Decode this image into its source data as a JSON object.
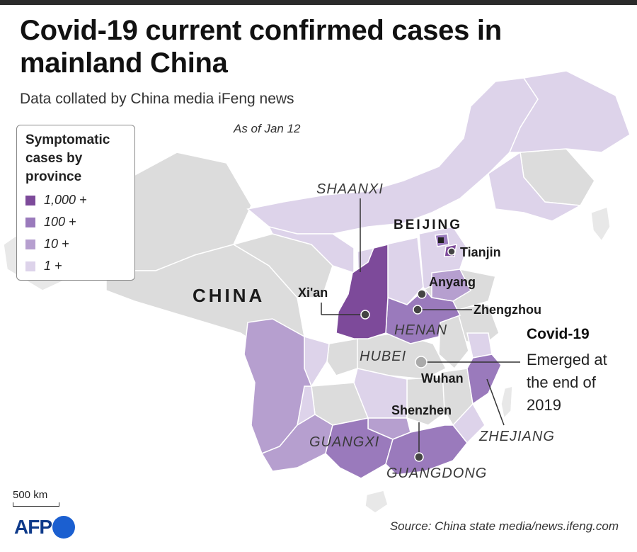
{
  "title": "Covid-19 current confirmed cases in mainland China",
  "subtitle": "Data collated by China media iFeng news",
  "as_of": "As of Jan 12",
  "legend": {
    "title": "Symptomatic cases by province",
    "items": [
      {
        "label": "1,000 +",
        "color": "#7d4a9a"
      },
      {
        "label": "100 +",
        "color": "#9a7abc"
      },
      {
        "label": "10 +",
        "color": "#b69fcf"
      },
      {
        "label": "1 +",
        "color": "#ddd3ea"
      }
    ]
  },
  "colors": {
    "no_cases": "#dcdcdc",
    "neighbour": "#e8e8e8",
    "border": "#ffffff",
    "marker": "#444444",
    "wuhan_marker": "#aaaaaa"
  },
  "labels": {
    "country": "CHINA",
    "beijing": "BEIJING",
    "tianjin": "Tianjin",
    "xian": "Xi'an",
    "anyang": "Anyang",
    "zhengzhou": "Zhengzhou",
    "wuhan": "Wuhan",
    "shenzhen": "Shenzhen",
    "shaanxi": "SHAANXI",
    "henan": "HENAN",
    "hubei": "HUBEI",
    "guangxi": "GUANGXI",
    "guangdong": "GUANGDONG",
    "zhejiang": "ZHEJIANG"
  },
  "note": {
    "heading": "Covid-19",
    "text": "Emerged at the end of 2019"
  },
  "scale": "500 km",
  "logo": "AFP",
  "source": "Source: China state media/news.ifeng.com"
}
